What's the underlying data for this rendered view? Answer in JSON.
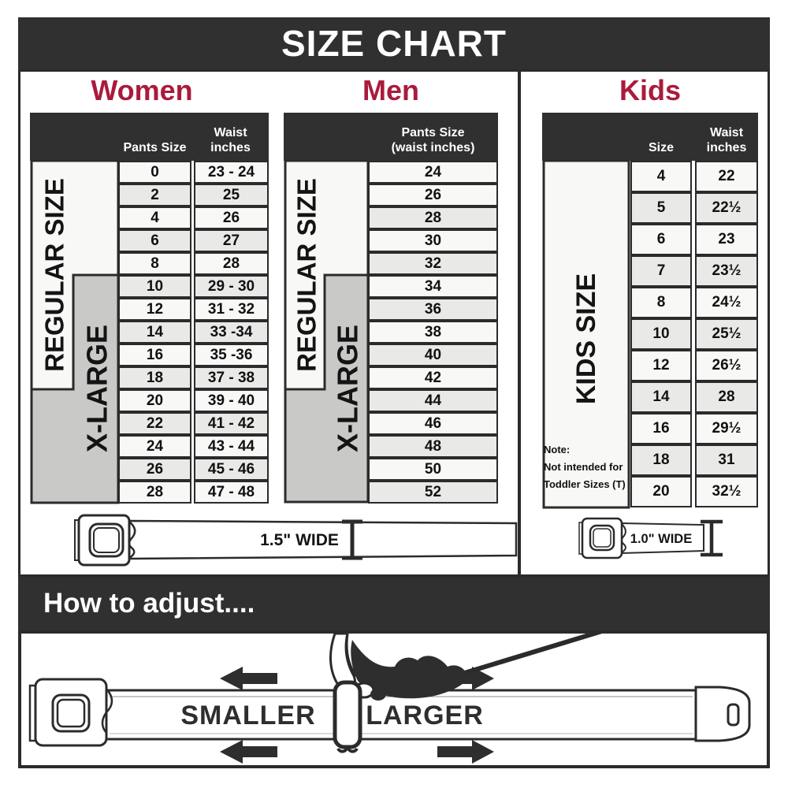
{
  "title": "SIZE CHART",
  "colors": {
    "accent_red": "#a91b3c",
    "panel_dark": "#303030",
    "zone_gray": "#c9c9c8",
    "row_light": "#f8f8f7",
    "row_alt": "#e9e9e8"
  },
  "women": {
    "heading": "Women",
    "regular_label": "REGULAR SIZE",
    "xlarge_label": "X-LARGE",
    "col_pants": "Pants Size",
    "col_waist_line1": "Waist",
    "col_waist_line2": "inches",
    "rows": [
      [
        "0",
        "23 - 24"
      ],
      [
        "2",
        "25"
      ],
      [
        "4",
        "26"
      ],
      [
        "6",
        "27"
      ],
      [
        "8",
        "28"
      ],
      [
        "10",
        "29 - 30"
      ],
      [
        "12",
        "31 - 32"
      ],
      [
        "14",
        "33 -34"
      ],
      [
        "16",
        "35 -36"
      ],
      [
        "18",
        "37 - 38"
      ],
      [
        "20",
        "39 - 40"
      ],
      [
        "22",
        "41 - 42"
      ],
      [
        "24",
        "43 - 44"
      ],
      [
        "26",
        "45 - 46"
      ],
      [
        "28",
        "47 - 48"
      ]
    ]
  },
  "men": {
    "heading": "Men",
    "regular_label": "REGULAR SIZE",
    "xlarge_label": "X-LARGE",
    "col_line1": "Pants Size",
    "col_line2": "(waist inches)",
    "rows": [
      "24",
      "26",
      "28",
      "30",
      "32",
      "34",
      "36",
      "38",
      "40",
      "42",
      "44",
      "46",
      "48",
      "50",
      "52"
    ]
  },
  "kids": {
    "heading": "Kids",
    "size_label": "KIDS SIZE",
    "col_size": "Size",
    "col_waist_line1": "Waist",
    "col_waist_line2": "inches",
    "rows": [
      [
        "4",
        "22"
      ],
      [
        "5",
        "22½"
      ],
      [
        "6",
        "23"
      ],
      [
        "7",
        "23½"
      ],
      [
        "8",
        "24½"
      ],
      [
        "10",
        "25½"
      ],
      [
        "12",
        "26½"
      ],
      [
        "14",
        "28"
      ],
      [
        "16",
        "29½"
      ],
      [
        "18",
        "31"
      ],
      [
        "20",
        "32½"
      ]
    ],
    "note_line1": "Note:",
    "note_line2": "Not intended for",
    "note_line3": "Toddler Sizes (T)"
  },
  "belts": {
    "adult_width": "1.5\" WIDE",
    "kids_width": "1.0\" WIDE"
  },
  "adjust": {
    "heading": "How to adjust....",
    "smaller": "SMALLER",
    "larger": "LARGER"
  }
}
